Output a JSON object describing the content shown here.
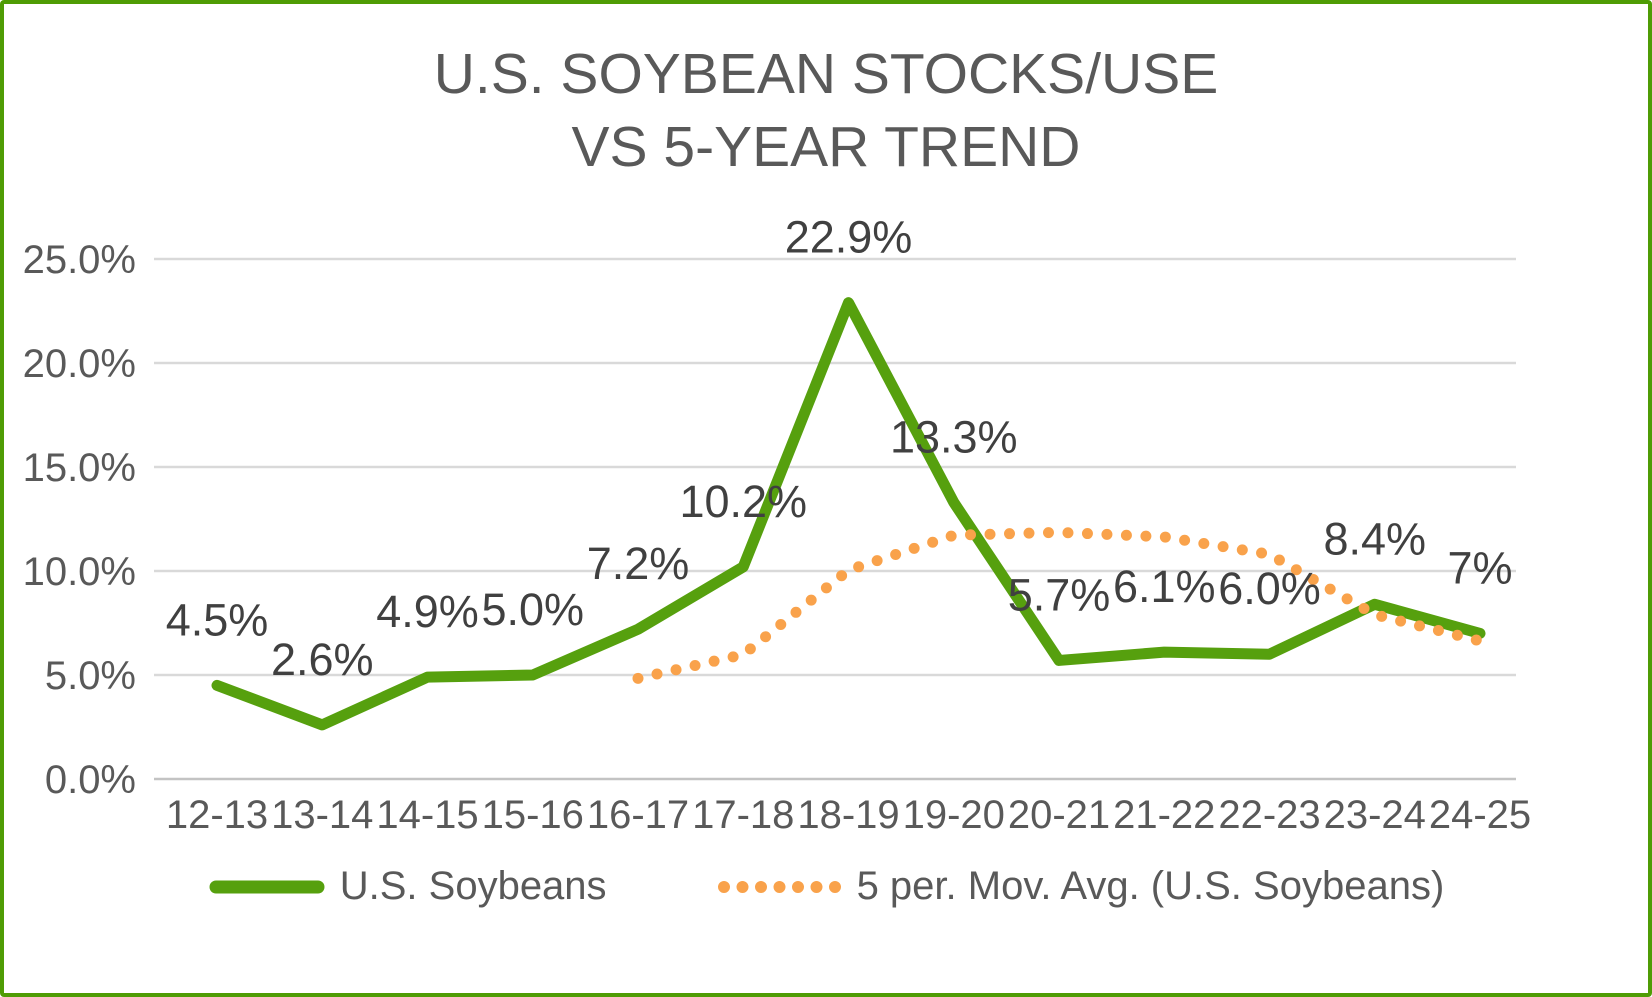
{
  "frame": {
    "border_color": "#4f9c05",
    "background": "#ffffff"
  },
  "title": {
    "line1": "U.S. SOYBEAN STOCKS/USE",
    "line2": "VS 5-YEAR TREND",
    "color": "#595959"
  },
  "chart_data": {
    "type": "line",
    "categories": [
      "12-13",
      "13-14",
      "14-15",
      "15-16",
      "16-17",
      "17-18",
      "18-19",
      "19-20",
      "20-21",
      "21-22",
      "22-23",
      "23-24",
      "24-25"
    ],
    "series": [
      {
        "name": "U.S. Soybeans",
        "line_style": "solid",
        "color": "#56a00e",
        "values": [
          4.5,
          2.6,
          4.9,
          5.0,
          7.2,
          10.2,
          22.9,
          13.3,
          5.7,
          6.1,
          6.0,
          8.4,
          7.0
        ],
        "data_labels": [
          "4.5%",
          "2.6%",
          "4.9%",
          "5.0%",
          "7.2%",
          "10.2%",
          "22.9%",
          "13.3%",
          "5.7%",
          "6.1%",
          "6.0%",
          "8.4%",
          "7%"
        ]
      },
      {
        "name": "5 per. Mov. Avg. (U.S. Soybeans)",
        "line_style": "dotted",
        "color": "#f9a24b",
        "values": [
          null,
          null,
          null,
          null,
          4.84,
          5.98,
          10.04,
          11.72,
          11.86,
          11.64,
          10.8,
          7.9,
          6.64
        ],
        "data_labels": [
          null,
          null,
          null,
          null,
          null,
          null,
          null,
          null,
          null,
          null,
          null,
          null,
          null
        ]
      }
    ],
    "title": "U.S. SOYBEAN STOCKS/USE VS 5-YEAR TREND",
    "xlabel": "",
    "ylabel": "",
    "ylim": [
      0,
      25
    ],
    "y_ticks": [
      {
        "label": "0.0%",
        "value": 0
      },
      {
        "label": "5.0%",
        "value": 5
      },
      {
        "label": "10.0%",
        "value": 10
      },
      {
        "label": "15.0%",
        "value": 15
      },
      {
        "label": "20.0%",
        "value": 20
      },
      {
        "label": "25.0%",
        "value": 25
      }
    ],
    "grid": true,
    "legend_position": "bottom",
    "gridline_color": "#d9d9d9",
    "axis_line_color": "#c3c3c3",
    "tick_label_color": "#595959",
    "data_label_color": "#404040"
  },
  "legend": {
    "items": [
      {
        "label": "U.S. Soybeans",
        "swatch": "solid-green-line",
        "color": "#56a00e"
      },
      {
        "label": "5 per. Mov. Avg. (U.S. Soybeans)",
        "swatch": "dotted-orange-line",
        "color": "#f9a24b"
      }
    ]
  }
}
